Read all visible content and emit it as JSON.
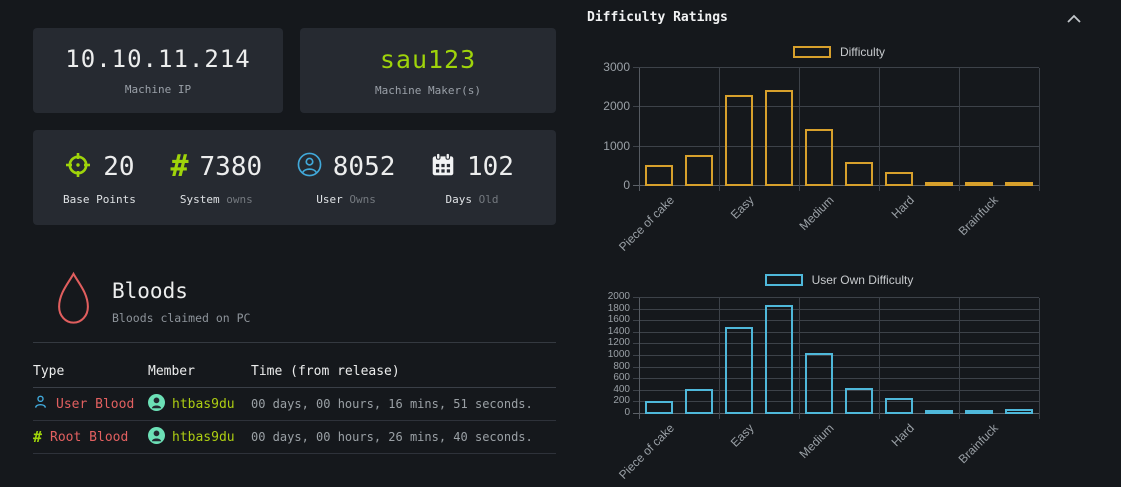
{
  "theme": {
    "background": "#15181c",
    "card": "#262a31",
    "text": "#eceded",
    "muted": "#9aa0a6",
    "green": "#9fd40a",
    "lime_link": "#adcd12",
    "blue": "#41a9da",
    "red": "#e26060",
    "gold": "#d7a02c",
    "cyan": "#4fb8da",
    "avatar_mint": "#6ce0b6"
  },
  "machine": {
    "ip": "10.10.11.214",
    "ip_label": "Machine IP",
    "maker": "sau123",
    "maker_label": "Machine Maker(s)"
  },
  "stats": [
    {
      "icon": "crosshair-icon",
      "value": "20",
      "label": "Base Points",
      "suffix": ""
    },
    {
      "icon": "hash-icon",
      "value": "7380",
      "label": "System",
      "suffix": "owns"
    },
    {
      "icon": "user-icon",
      "value": "8052",
      "label": "User",
      "suffix": "Owns"
    },
    {
      "icon": "calendar-icon",
      "value": "102",
      "label": "Days",
      "suffix": "Old"
    }
  ],
  "bloods": {
    "icon": "blood-drop-icon",
    "title": "Bloods",
    "subtitle": "Bloods claimed on PC",
    "columns": {
      "type": "Type",
      "member": "Member",
      "time": "Time (from release)"
    },
    "rows": [
      {
        "icon": "person-icon",
        "type": "User Blood",
        "member": "htbas9du",
        "time": "00 days, 00 hours, 16 mins, 51 seconds."
      },
      {
        "icon": "hash-icon",
        "type": "Root Blood",
        "member": "htbas9du",
        "time": "00 days, 00 hours, 26 mins, 40 seconds."
      }
    ]
  },
  "panel": {
    "title": "Difficulty Ratings",
    "collapse_icon": "chevron-up-icon"
  },
  "chart_data": [
    {
      "type": "bar",
      "title": "Difficulty",
      "legend": "Difficulty",
      "color": "#d7a02c",
      "values": [
        540,
        790,
        2320,
        2450,
        1450,
        600,
        350,
        100,
        40,
        110
      ],
      "x_tick_labels": [
        "Piece of cake",
        "Easy",
        "Medium",
        "Hard",
        "Brainfuck"
      ],
      "y_ticks": [
        0,
        1000,
        2000,
        3000
      ],
      "ylim": [
        0,
        3000
      ],
      "grid": true,
      "legend_position": "top",
      "bar_style": "outline"
    },
    {
      "type": "bar",
      "title": "User Own Difficulty",
      "legend": "User Own Difficulty",
      "color": "#4fb8da",
      "values": [
        230,
        430,
        1500,
        1880,
        1050,
        450,
        270,
        70,
        40,
        80
      ],
      "x_tick_labels": [
        "Piece of cake",
        "Easy",
        "Medium",
        "Hard",
        "Brainfuck"
      ],
      "y_ticks": [
        0,
        200,
        400,
        600,
        800,
        1000,
        1200,
        1400,
        1600,
        1800,
        2000
      ],
      "ylim": [
        0,
        2000
      ],
      "grid": true,
      "legend_position": "top",
      "bar_style": "outline"
    }
  ]
}
